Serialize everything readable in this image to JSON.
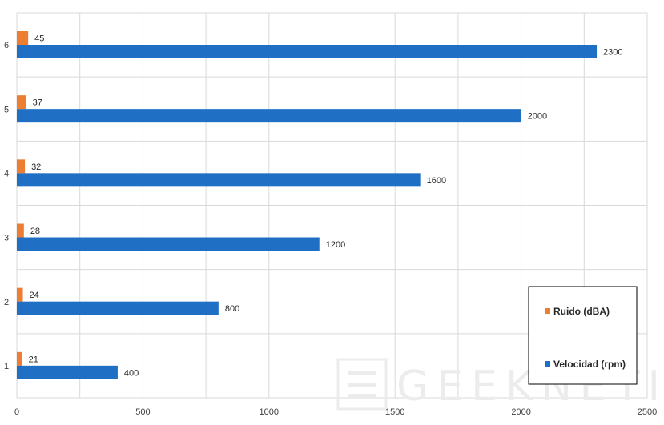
{
  "watermark": "GEEKNETIC",
  "chart_data": {
    "type": "bar",
    "orientation": "horizontal",
    "categories": [
      "1",
      "2",
      "3",
      "4",
      "5",
      "6"
    ],
    "series": [
      {
        "name": "Ruido (dBA)",
        "color": "#ED7D31",
        "values": [
          21,
          24,
          28,
          32,
          37,
          45
        ]
      },
      {
        "name": "Velocidad (rpm)",
        "color": "#1F6FC5",
        "values": [
          400,
          800,
          1200,
          1600,
          2000,
          2300
        ]
      }
    ],
    "xticks": [
      "0",
      "500",
      "1000",
      "1500",
      "2000",
      "2500"
    ],
    "xlim": [
      0,
      2500
    ],
    "grid": true,
    "legend": "bottom-right",
    "data_labels": true
  }
}
